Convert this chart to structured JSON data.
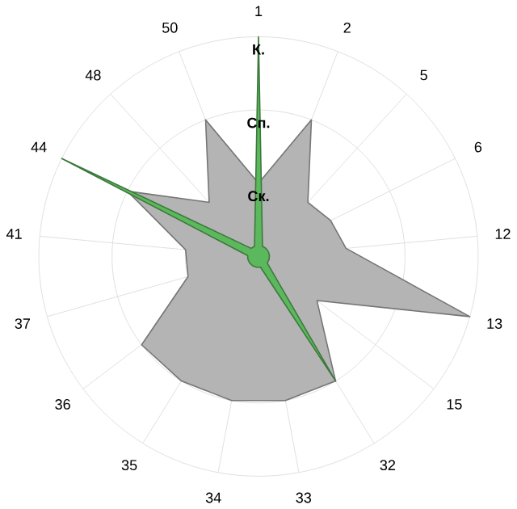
{
  "chart_data": {
    "type": "radar",
    "categories": [
      "1",
      "2",
      "5",
      "6",
      "12",
      "13",
      "15",
      "32",
      "33",
      "34",
      "35",
      "36",
      "37",
      "41",
      "44",
      "48",
      "50"
    ],
    "series": [
      {
        "color": "#b4b4b4",
        "values": [
          1.0,
          2.0,
          1.0,
          1.1,
          1.2,
          3.0,
          1.0,
          2.0,
          2.0,
          2.0,
          2.0,
          2.0,
          1.0,
          1.0,
          2.0,
          1.0,
          2.0
        ]
      },
      {
        "color": "#5cb85c",
        "values": [
          3.0,
          0.15,
          0.15,
          0.15,
          0.15,
          0.15,
          0.15,
          2.0,
          0.15,
          0.15,
          0.15,
          0.15,
          0.15,
          0.15,
          3.0,
          0.15,
          0.15
        ]
      }
    ],
    "ylim": [
      0,
      3
    ],
    "yticks": [
      {
        "value": 1,
        "label": "Ск."
      },
      {
        "value": 2,
        "label": "Сп."
      },
      {
        "value": 3,
        "label": "К."
      }
    ],
    "grid": true
  }
}
